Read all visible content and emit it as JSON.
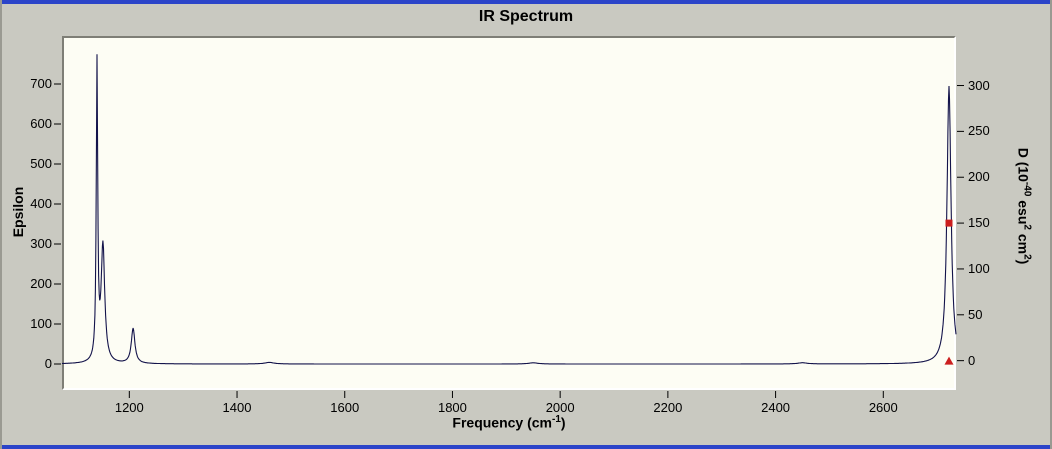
{
  "window": {
    "title": "IR Spectrum"
  },
  "colors": {
    "background": "#c9c9c1",
    "frame_blue": "#2b44c9",
    "plot_bg": "#fdfdf4",
    "line": "#13134a",
    "marker": "#cc1f1f",
    "text": "#000000"
  },
  "chart_data": {
    "type": "line",
    "title": "IR Spectrum",
    "x_axis": {
      "label": {
        "p1": "Frequency (cm",
        "s1": "-1",
        "p2": ")"
      },
      "ticks": [
        1200,
        1400,
        1600,
        1800,
        2000,
        2200,
        2400,
        2600
      ],
      "range": [
        1075,
        2735
      ]
    },
    "left_axis": {
      "label": "Epsilon",
      "ticks": [
        0,
        100,
        200,
        300,
        400,
        500,
        600,
        700
      ],
      "range": [
        -65,
        820
      ]
    },
    "right_axis": {
      "label": {
        "p1": "D (10",
        "s1": "-40",
        "p2": " esu",
        "s2": "2",
        "p3": " cm",
        "s3": "2",
        "p4": ")"
      },
      "ticks": [
        0,
        50,
        100,
        150,
        200,
        250,
        300
      ],
      "range": [
        -32,
        354
      ]
    },
    "peaks": [
      {
        "freq": 1140,
        "epsilon": 740,
        "width": 1.6
      },
      {
        "freq": 1151,
        "epsilon": 293,
        "width": 4.0
      },
      {
        "freq": 1207,
        "epsilon": 88,
        "width": 4.0
      },
      {
        "freq": 1460,
        "epsilon": 4,
        "width": 10.0
      },
      {
        "freq": 1950,
        "epsilon": 3,
        "width": 10.0
      },
      {
        "freq": 2450,
        "epsilon": 3,
        "width": 10.0
      },
      {
        "freq": 2722,
        "epsilon": 695,
        "width": 4.5
      }
    ],
    "markers": [
      {
        "freq": 2722,
        "axis": "right",
        "value": 150,
        "shape": "square"
      },
      {
        "freq": 2722,
        "axis": "right",
        "value": 0,
        "shape": "triangle"
      }
    ],
    "grid": false,
    "legend": "none"
  }
}
